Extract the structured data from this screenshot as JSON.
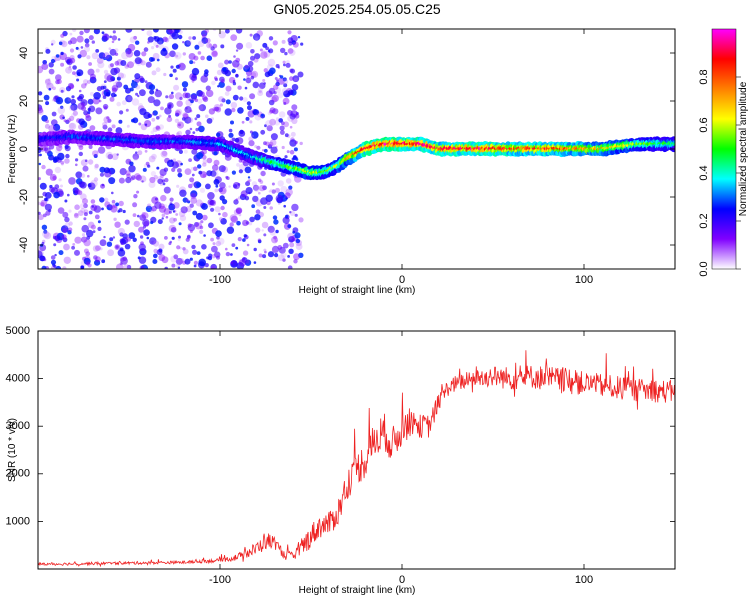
{
  "title": "GN05.2025.254.05.05.C25",
  "chart_data": [
    {
      "type": "heatmap",
      "xlabel": "Height of straight line (km)",
      "ylabel": "Frequency (Hz)",
      "xlim": [
        -200,
        150
      ],
      "ylim": [
        -50,
        50
      ],
      "xticks": [
        -100,
        0,
        100
      ],
      "yticks": [
        -40,
        -20,
        0,
        20,
        40
      ],
      "colorbar": {
        "label": "Normalized spectral amplitude",
        "range": [
          0.0,
          1.0
        ],
        "ticks": [
          0.0,
          0.2,
          0.4,
          0.6,
          0.8
        ],
        "tick_labels": [
          "0.0",
          "0.2",
          "0.4",
          "0.6",
          "0.8"
        ],
        "colors": [
          "#ffffff",
          "#8000ff",
          "#0000ff",
          "#00ffff",
          "#00ff00",
          "#ffff00",
          "#ff8000",
          "#ff0000",
          "#ff00ff"
        ]
      },
      "ridge": {
        "x": [
          -200,
          -180,
          -160,
          -140,
          -120,
          -100,
          -90,
          -80,
          -70,
          -60,
          -50,
          -45,
          -40,
          -35,
          -30,
          -25,
          -20,
          -15,
          -10,
          -5,
          0,
          10,
          20,
          40,
          60,
          80,
          100,
          110,
          120,
          130,
          140,
          150
        ],
        "frequency": [
          4,
          5,
          4,
          3,
          3,
          2,
          -1,
          -4,
          -6,
          -8,
          -10,
          -10,
          -9,
          -7,
          -4,
          -2,
          0,
          1,
          2,
          2,
          2,
          2,
          0,
          0,
          0,
          0,
          0,
          0,
          1,
          2,
          2,
          2
        ],
        "amplitude": [
          0.25,
          0.28,
          0.3,
          0.3,
          0.3,
          0.35,
          0.38,
          0.4,
          0.5,
          0.55,
          0.6,
          0.55,
          0.55,
          0.6,
          0.7,
          0.8,
          0.9,
          0.95,
          0.95,
          0.95,
          0.95,
          0.9,
          0.85,
          0.9,
          0.85,
          0.85,
          0.75,
          0.7,
          0.65,
          0.55,
          0.5,
          0.45
        ]
      },
      "noise_region": {
        "x_range": [
          -200,
          -65
        ],
        "frequency_range": [
          -50,
          50
        ],
        "amplitude_range": [
          0.0,
          0.25
        ]
      }
    },
    {
      "type": "line",
      "xlabel": "Height of straight line (km)",
      "ylabel": "SNR (10 * v/v)",
      "xlim": [
        -200,
        150
      ],
      "ylim": [
        0,
        5000
      ],
      "xticks": [
        -100,
        0,
        100
      ],
      "yticks": [
        1000,
        2000,
        3000,
        4000,
        5000
      ],
      "color": "#ee2222",
      "series": [
        {
          "x": [
            -200,
            -180,
            -160,
            -140,
            -120,
            -100,
            -90,
            -80,
            -75,
            -70,
            -65,
            -60,
            -55,
            -50,
            -45,
            -40,
            -35,
            -30,
            -25,
            -20,
            -15,
            -10,
            -5,
            0,
            5,
            10,
            15,
            20,
            25,
            30,
            40,
            50,
            60,
            70,
            80,
            90,
            100,
            110,
            120,
            130,
            140,
            150
          ],
          "y": [
            100,
            110,
            120,
            130,
            140,
            180,
            250,
            420,
            600,
            550,
            300,
            250,
            450,
            700,
            900,
            950,
            1200,
            1800,
            2100,
            2300,
            2700,
            2900,
            2600,
            2950,
            3100,
            3000,
            3000,
            3500,
            3800,
            3900,
            4000,
            4050,
            4000,
            4050,
            4000,
            3950,
            3900,
            3850,
            3800,
            3750,
            3750,
            3700
          ],
          "noise_amplitude": [
            60,
            60,
            60,
            60,
            60,
            80,
            150,
            300,
            400,
            300,
            200,
            200,
            400,
            500,
            500,
            500,
            600,
            700,
            700,
            800,
            800,
            800,
            800,
            700,
            600,
            500,
            500,
            400,
            350,
            350,
            400,
            450,
            500,
            500,
            550,
            550,
            500,
            500,
            500,
            500,
            500,
            500
          ]
        }
      ]
    }
  ]
}
